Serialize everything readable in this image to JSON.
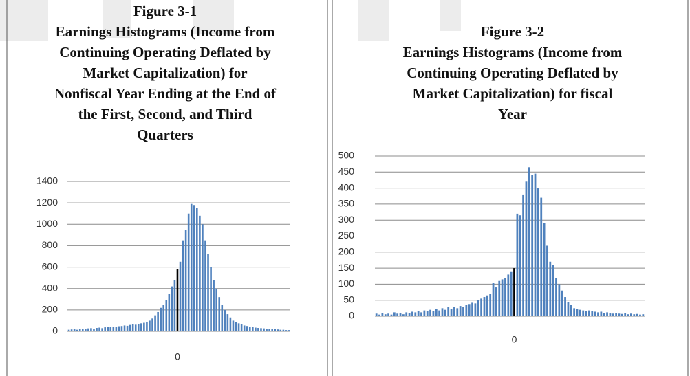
{
  "chart_data": [
    {
      "type": "bar",
      "title": [
        "Figure 3-1",
        "Earnings Histograms (Income from",
        "Continuing Operating Deflated by",
        "Market Capitalization) for",
        "Nonfiscal Year Ending at the End of",
        "the First, Second, and Third",
        "Quarters"
      ],
      "categories": [
        null,
        null,
        null,
        null,
        null,
        null,
        null,
        null,
        null,
        null,
        null,
        null,
        null,
        null,
        null,
        null,
        null,
        null,
        null,
        null,
        null,
        null,
        null,
        null,
        null,
        null,
        null,
        null,
        null,
        null,
        null,
        null,
        null,
        null,
        null,
        null,
        null,
        null,
        null,
        "0",
        null,
        null,
        null,
        null,
        null,
        null,
        null,
        null,
        null,
        null,
        null,
        null,
        null,
        null,
        null,
        null,
        null,
        null,
        null,
        null,
        null,
        null,
        null,
        null,
        null,
        null,
        null,
        null,
        null,
        null,
        null,
        null,
        null,
        null,
        null,
        null,
        null,
        null,
        null,
        null
      ],
      "values": [
        15,
        18,
        20,
        15,
        22,
        25,
        20,
        28,
        30,
        25,
        32,
        35,
        30,
        38,
        40,
        42,
        45,
        40,
        48,
        50,
        55,
        52,
        60,
        65,
        62,
        70,
        75,
        80,
        90,
        100,
        120,
        150,
        180,
        220,
        250,
        290,
        350,
        420,
        480,
        580,
        650,
        850,
        950,
        1100,
        1190,
        1180,
        1150,
        1080,
        1000,
        850,
        720,
        600,
        480,
        400,
        320,
        250,
        200,
        160,
        130,
        100,
        85,
        75,
        65,
        55,
        50,
        45,
        40,
        35,
        32,
        30,
        28,
        25,
        22,
        20,
        20,
        18,
        15,
        15,
        12,
        12
      ],
      "color": "#4f81bd",
      "highlight_color": "#000000",
      "ylim": [
        0,
        1400
      ],
      "yticks": [
        0,
        200,
        400,
        600,
        800,
        1000,
        1200,
        1400
      ],
      "grid": true
    },
    {
      "type": "bar",
      "title": [
        "Figure 3-2",
        "Earnings Histograms (Income from",
        "Continuing Operating Deflated by",
        "Market Capitalization) for fiscal",
        "Year"
      ],
      "categories": [
        null,
        null,
        null,
        null,
        null,
        null,
        null,
        null,
        null,
        null,
        null,
        null,
        null,
        null,
        null,
        null,
        null,
        null,
        null,
        null,
        null,
        null,
        null,
        null,
        null,
        null,
        null,
        null,
        null,
        null,
        null,
        null,
        null,
        null,
        null,
        null,
        null,
        null,
        null,
        null,
        null,
        null,
        null,
        null,
        null,
        null,
        "0",
        null,
        null,
        null,
        null,
        null,
        null,
        null,
        null,
        null,
        null,
        null,
        null,
        null,
        null,
        null,
        null,
        null,
        null,
        null,
        null,
        null,
        null,
        null,
        null,
        null,
        null,
        null,
        null,
        null,
        null,
        null,
        null,
        null,
        null,
        null,
        null,
        null,
        null,
        null,
        null,
        null,
        null,
        null
      ],
      "values": [
        8,
        5,
        10,
        6,
        8,
        5,
        12,
        8,
        10,
        6,
        12,
        10,
        14,
        12,
        15,
        12,
        18,
        15,
        20,
        16,
        22,
        18,
        25,
        20,
        28,
        22,
        30,
        25,
        32,
        28,
        35,
        38,
        42,
        40,
        50,
        55,
        60,
        65,
        70,
        105,
        90,
        110,
        115,
        120,
        130,
        140,
        150,
        320,
        315,
        380,
        420,
        465,
        440,
        445,
        400,
        370,
        290,
        220,
        170,
        160,
        120,
        100,
        80,
        60,
        45,
        35,
        25,
        22,
        20,
        18,
        16,
        18,
        15,
        14,
        12,
        14,
        10,
        12,
        10,
        8,
        10,
        8,
        7,
        9,
        6,
        8,
        6,
        7,
        5,
        6
      ],
      "color": "#4f81bd",
      "highlight_color": "#000000",
      "ylim": [
        0,
        500
      ],
      "yticks": [
        0,
        50,
        100,
        150,
        200,
        250,
        300,
        350,
        400,
        450,
        500
      ],
      "grid": true
    }
  ]
}
